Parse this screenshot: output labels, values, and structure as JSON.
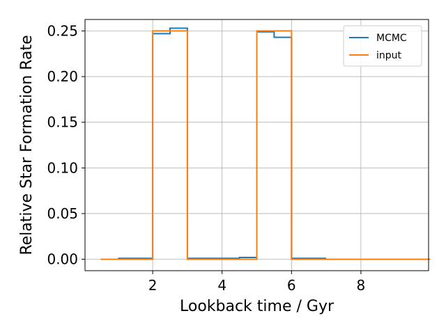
{
  "chart_data": {
    "type": "line",
    "xlabel": "Lookback time / Gyr",
    "ylabel": "Relative Star Formation Rate",
    "xlim": [
      0.05,
      9.95
    ],
    "ylim": [
      -0.0125,
      0.2625
    ],
    "xticks": [
      2,
      4,
      6,
      8
    ],
    "yticks": [
      0.0,
      0.05,
      0.1,
      0.15,
      0.2,
      0.25
    ],
    "xtick_labels": [
      "2",
      "4",
      "6",
      "8"
    ],
    "ytick_labels": [
      "0.00",
      "0.05",
      "0.10",
      "0.15",
      "0.20",
      "0.25"
    ],
    "grid": true,
    "legend_position": "top-right",
    "step": "post",
    "series": [
      {
        "name": "MCMC",
        "color": "#1f77b4",
        "x": [
          1.0,
          1.5,
          2.0,
          2.5,
          3.0,
          3.5,
          4.0,
          4.5,
          5.0,
          5.5,
          6.0,
          6.5
        ],
        "values": [
          0.001,
          0.001,
          0.247,
          0.253,
          0.001,
          0.001,
          0.001,
          0.002,
          0.249,
          0.243,
          0.001,
          0.001
        ]
      },
      {
        "name": "input",
        "color": "#ff7f0e",
        "x": [
          0.5,
          1.0,
          1.5,
          2.0,
          2.5,
          3.0,
          3.5,
          4.0,
          4.5,
          5.0,
          5.5,
          6.0,
          6.5,
          7.0,
          7.5,
          8.0,
          8.5,
          9.0,
          9.5
        ],
        "values": [
          0.0,
          0.0,
          0.0,
          0.25,
          0.25,
          0.0,
          0.0,
          0.0,
          0.0,
          0.25,
          0.25,
          0.0,
          0.0,
          0.0,
          0.0,
          0.0,
          0.0,
          0.0,
          0.0
        ]
      }
    ]
  }
}
